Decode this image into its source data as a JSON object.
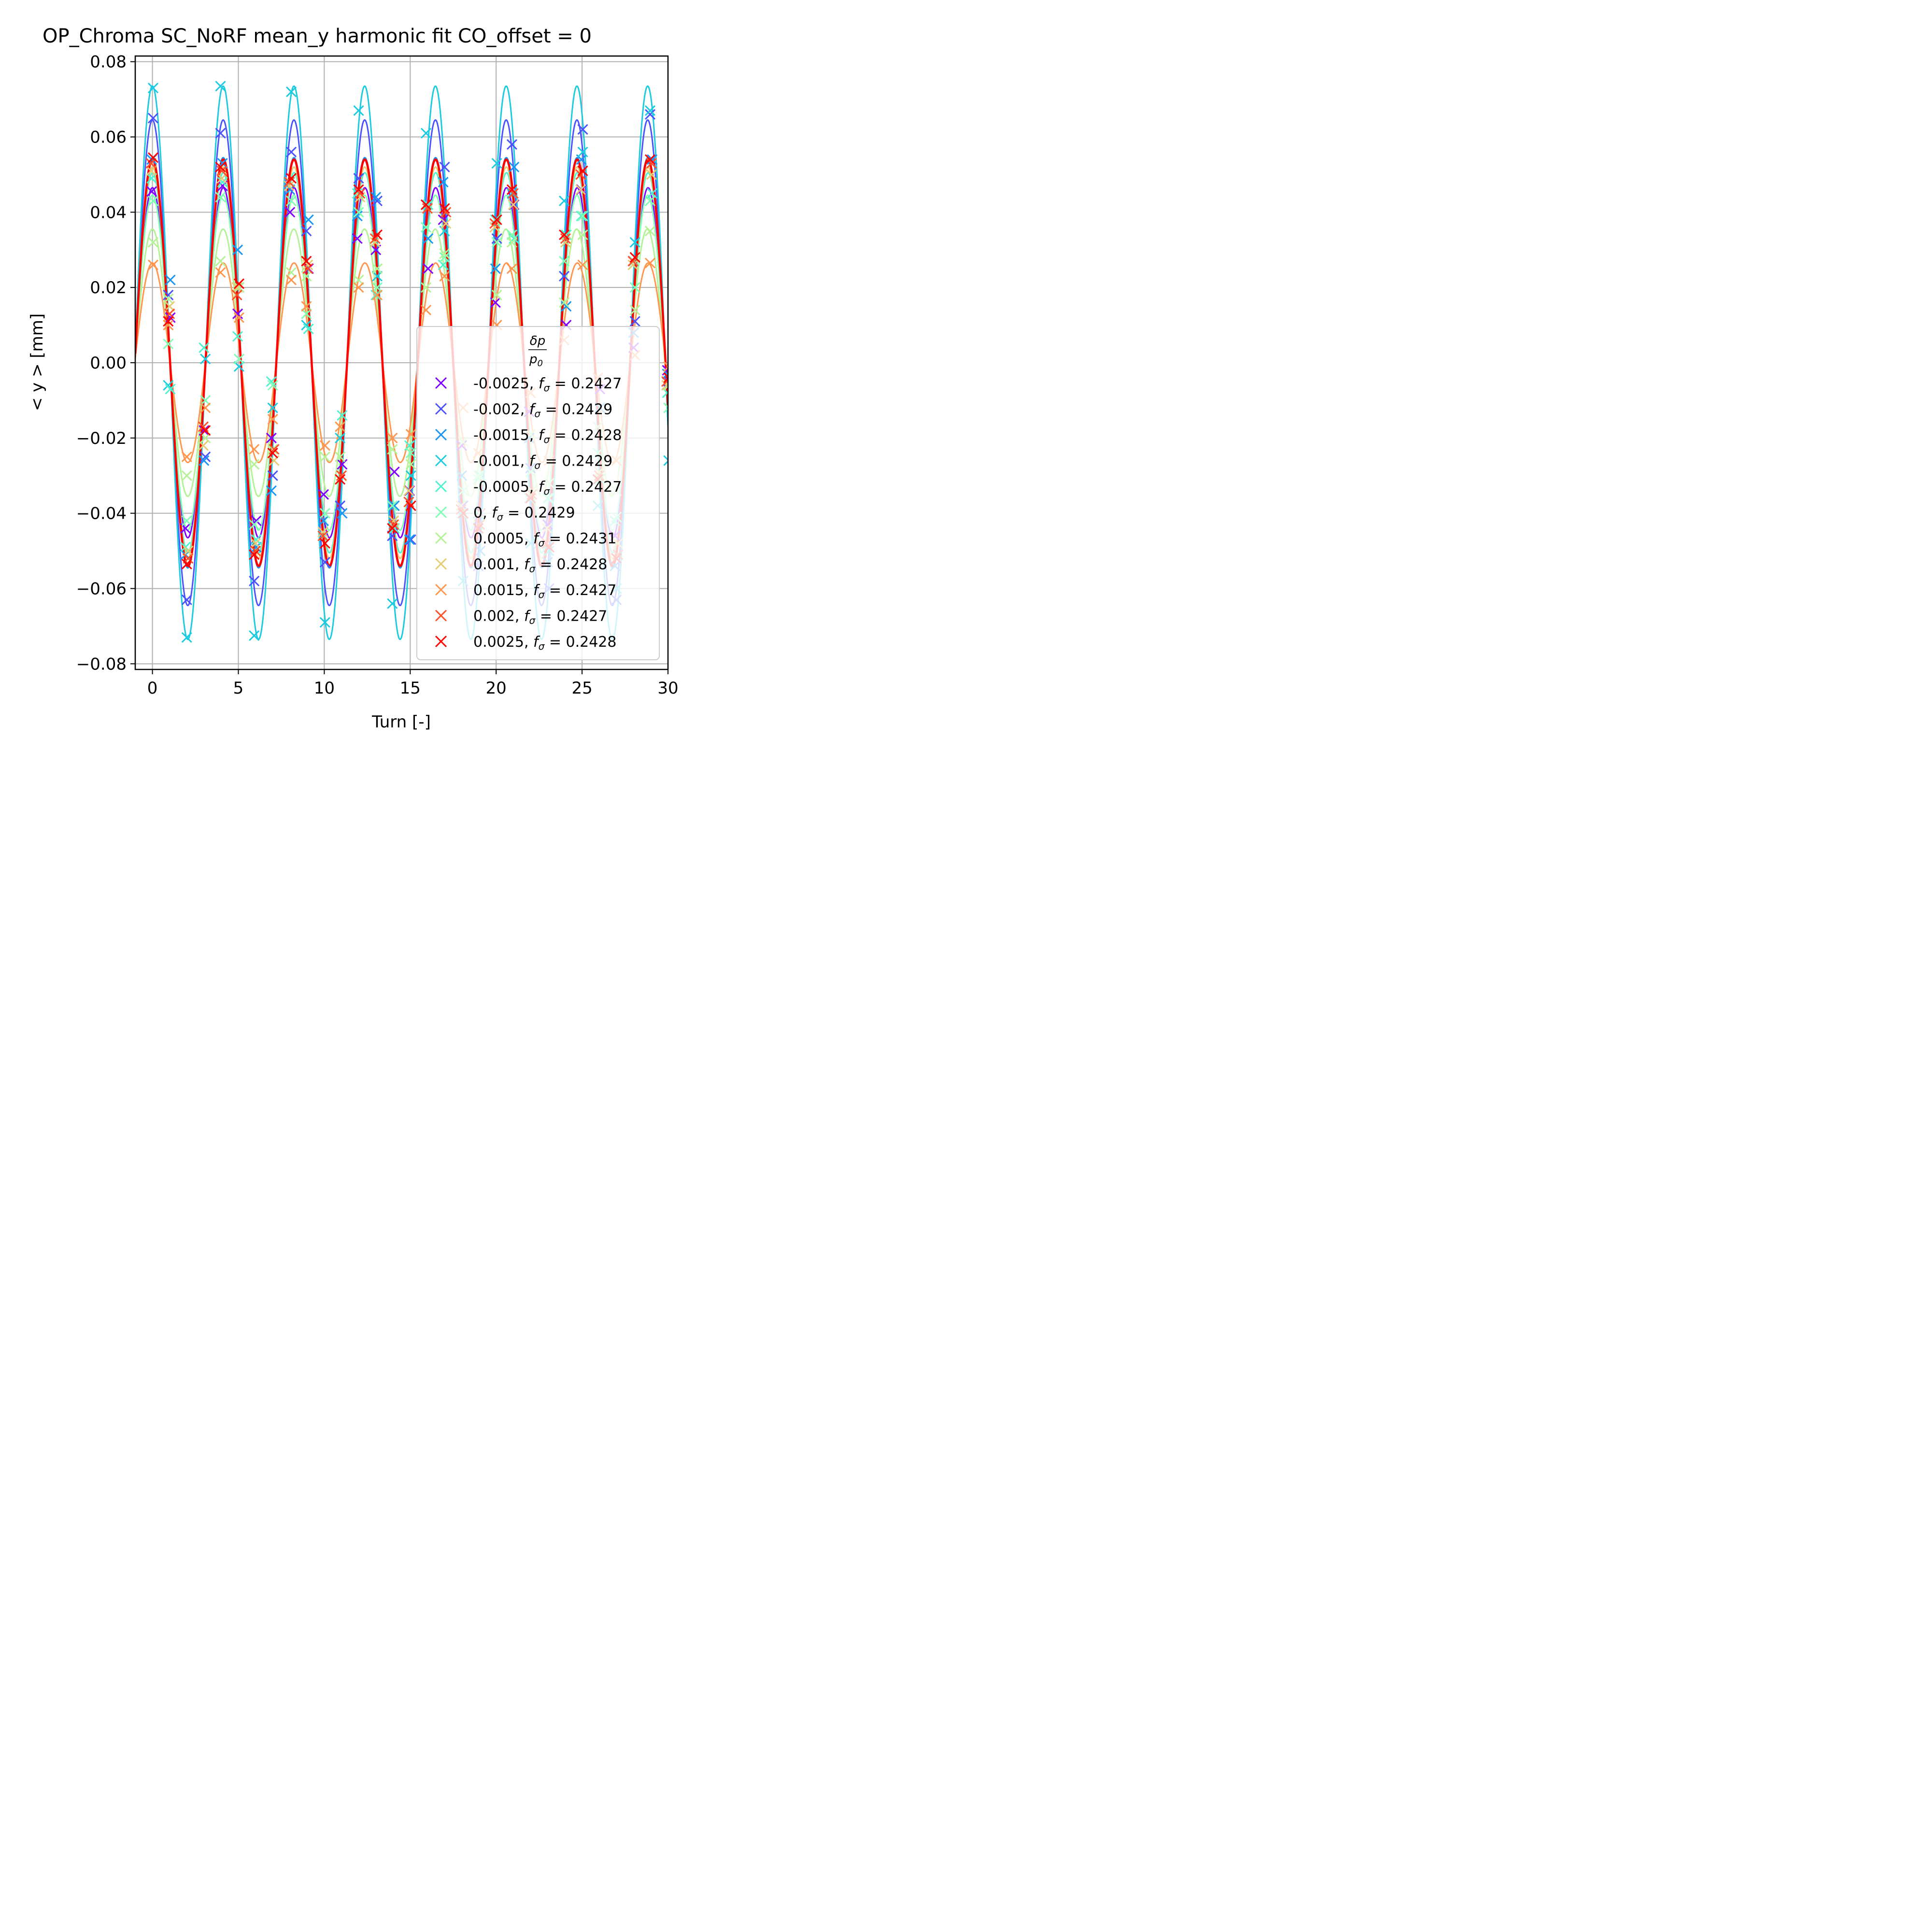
{
  "chart_data": {
    "type": "line",
    "title": "OP_Chroma SC_NoRF mean_y harmonic fit CO_offset = 0",
    "xlabel": "Turn [-]",
    "ylabel": "< y >  [mm]",
    "xlim": [
      -1,
      30
    ],
    "ylim": [
      -0.0815,
      0.0815
    ],
    "xticks": [
      0,
      5,
      10,
      15,
      20,
      25,
      30
    ],
    "xtick_labels": [
      "0",
      "5",
      "10",
      "15",
      "20",
      "25",
      "30"
    ],
    "yticks": [
      0.08,
      0.06,
      0.04,
      0.02,
      0.0,
      -0.02,
      -0.04,
      -0.06,
      -0.08
    ],
    "ytick_labels": [
      "0.08",
      "0.06",
      "0.04",
      "0.02",
      "0.00",
      "−0.02",
      "−0.04",
      "−0.06",
      "−0.08"
    ],
    "grid": true,
    "legend_position": "lower-right",
    "legend_title": "δp / p0",
    "legend_title_parts": {
      "num": "δp",
      "den": "p",
      "den_sub": "0"
    },
    "series": [
      {
        "name": "-0.0025, fσ = 0.2427",
        "dp": "-0.0025",
        "f_label": "= 0.2427",
        "color": "#8000ff",
        "freq": 0.2427,
        "amplitude": 0.0465,
        "phase": 0.0,
        "points_y": [
          0.0455,
          0.012,
          -0.044,
          -0.018,
          0.047,
          0.013,
          -0.042,
          -0.02,
          0.04,
          0.025,
          -0.035,
          -0.027,
          0.033,
          0.03,
          -0.029,
          -0.034,
          0.025,
          0.038,
          -0.022,
          -0.04,
          0.016,
          0.042,
          -0.013,
          -0.043,
          0.01,
          0.046,
          -0.007,
          -0.046,
          0.004,
          0.045,
          -0.002
        ]
      },
      {
        "name": "-0.002, fσ = 0.2429",
        "dp": "-0.002",
        "f_label": "= 0.2429",
        "color": "#4a53fb",
        "freq": 0.2429,
        "amplitude": 0.0645,
        "phase": 0.0,
        "points_y": [
          0.065,
          0.018,
          -0.063,
          -0.025,
          0.061,
          0.02,
          -0.058,
          -0.03,
          0.056,
          0.035,
          -0.053,
          -0.038,
          0.049,
          0.043,
          -0.046,
          -0.047,
          0.042,
          0.052,
          -0.038,
          -0.054,
          0.033,
          0.058,
          -0.028,
          -0.06,
          0.023,
          0.062,
          -0.017,
          -0.063,
          0.011,
          0.066,
          -0.005
        ]
      },
      {
        "name": "-0.0015, fσ = 0.2428",
        "dp": "-0.0015",
        "f_label": "= 0.2428",
        "color": "#1996f3",
        "freq": 0.2428,
        "amplitude": 0.0545,
        "phase": 0.0,
        "points_y": [
          0.054,
          0.022,
          -0.051,
          -0.026,
          0.053,
          0.03,
          -0.049,
          -0.034,
          0.046,
          0.038,
          -0.042,
          -0.04,
          0.039,
          0.044,
          -0.038,
          -0.047,
          0.033,
          0.048,
          -0.03,
          -0.05,
          0.025,
          0.052,
          -0.02,
          -0.053,
          0.015,
          0.054,
          -0.012,
          -0.054,
          0.008,
          0.054,
          -0.003
        ]
      },
      {
        "name": "-0.001, fσ = 0.2429",
        "dp": "-0.001",
        "f_label": "= 0.2429",
        "color": "#1ccbe0",
        "freq": 0.2429,
        "amplitude": 0.0735,
        "phase": 0.0,
        "points_y": [
          0.073,
          -0.006,
          -0.073,
          0.001,
          0.0735,
          -0.001,
          -0.0725,
          -0.012,
          0.072,
          0.01,
          -0.069,
          -0.02,
          0.067,
          0.023,
          -0.064,
          -0.03,
          0.061,
          0.035,
          -0.058,
          -0.04,
          0.053,
          0.045,
          -0.048,
          -0.05,
          0.043,
          0.056,
          -0.038,
          -0.06,
          0.032,
          0.067,
          -0.026
        ]
      },
      {
        "name": "-0.0005, fσ = 0.2427",
        "dp": "-0.0005",
        "f_label": "= 0.2427",
        "color": "#4df3ce",
        "freq": 0.2427,
        "amplitude": 0.0505,
        "phase": 0.0,
        "points_y": [
          0.049,
          -0.007,
          -0.049,
          0.004,
          0.048,
          0.007,
          -0.047,
          -0.005,
          0.048,
          0.009,
          -0.046,
          -0.014,
          0.045,
          0.018,
          -0.044,
          -0.022,
          0.042,
          0.026,
          -0.04,
          -0.03,
          0.038,
          0.033,
          -0.036,
          -0.036,
          0.034,
          0.039,
          -0.031,
          -0.042,
          0.027,
          0.045,
          -0.008
        ]
      },
      {
        "name": "0, fσ = 0.2429",
        "dp": "0",
        "f_label": "= 0.2429",
        "color": "#80ffb4",
        "freq": 0.2429,
        "amplitude": 0.0445,
        "phase": 0.0,
        "points_y": [
          0.043,
          0.005,
          -0.042,
          -0.01,
          0.044,
          0.001,
          -0.043,
          -0.006,
          0.043,
          0.013,
          -0.04,
          -0.017,
          0.04,
          0.02,
          -0.038,
          -0.024,
          0.036,
          0.028,
          -0.034,
          -0.031,
          0.032,
          0.034,
          -0.029,
          -0.036,
          0.027,
          0.039,
          -0.024,
          -0.041,
          0.02,
          0.043,
          -0.012
        ]
      },
      {
        "name": "0.0005, fσ = 0.2431",
        "dp": "0.0005",
        "f_label": "= 0.2431",
        "color": "#b3f396",
        "freq": 0.2431,
        "amplitude": 0.0355,
        "phase": 0.0,
        "points_y": [
          0.032,
          0.017,
          -0.03,
          -0.02,
          0.027,
          0.02,
          -0.027,
          -0.023,
          0.024,
          0.023,
          -0.025,
          -0.025,
          0.022,
          0.025,
          -0.023,
          -0.027,
          0.02,
          0.029,
          -0.021,
          -0.03,
          0.018,
          0.032,
          -0.019,
          -0.032,
          0.016,
          0.034,
          -0.017,
          -0.034,
          0.014,
          0.035,
          -0.006
        ]
      },
      {
        "name": "0.001, fσ = 0.2428",
        "dp": "0.001",
        "f_label": "= 0.2428",
        "color": "#e6cb72",
        "freq": 0.2428,
        "amplitude": 0.052,
        "phase": 0.0,
        "points_y": [
          0.051,
          0.015,
          -0.05,
          -0.022,
          0.049,
          0.02,
          -0.048,
          -0.026,
          0.047,
          0.026,
          -0.045,
          -0.03,
          0.044,
          0.032,
          -0.042,
          -0.034,
          0.041,
          0.037,
          -0.038,
          -0.04,
          0.036,
          0.042,
          -0.034,
          -0.044,
          0.032,
          0.046,
          -0.029,
          -0.048,
          0.026,
          0.05,
          -0.006
        ]
      },
      {
        "name": "0.0015, fσ = 0.2427",
        "dp": "0.0015",
        "f_label": "= 0.2427",
        "color": "#ff964e",
        "freq": 0.2427,
        "amplitude": 0.0265,
        "phase": 0.0,
        "points_y": [
          0.026,
          0.01,
          -0.025,
          -0.012,
          0.024,
          0.012,
          -0.023,
          -0.015,
          0.022,
          0.015,
          -0.022,
          -0.017,
          0.02,
          0.018,
          -0.02,
          -0.019,
          0.014,
          0.023,
          -0.012,
          -0.024,
          0.01,
          0.025,
          -0.008,
          -0.026,
          0.006,
          0.026,
          -0.004,
          -0.026,
          0.002,
          0.0265,
          -0.001
        ]
      },
      {
        "name": "0.002, fσ = 0.2427",
        "dp": "0.002",
        "f_label": "= 0.2427",
        "color": "#ff5029",
        "freq": 0.2427,
        "amplitude": 0.054,
        "phase": 0.0,
        "points_y": [
          0.053,
          0.013,
          -0.052,
          -0.017,
          0.051,
          0.018,
          -0.05,
          -0.023,
          0.048,
          0.025,
          -0.046,
          -0.03,
          0.045,
          0.033,
          -0.043,
          -0.037,
          0.041,
          0.04,
          -0.039,
          -0.043,
          0.037,
          0.045,
          -0.035,
          -0.048,
          0.033,
          0.05,
          -0.03,
          -0.051,
          0.027,
          0.053,
          -0.005
        ]
      },
      {
        "name": "0.0025, fσ = 0.2428",
        "dp": "0.0025",
        "f_label": "= 0.2428",
        "color": "#ff0000",
        "freq": 0.2428,
        "amplitude": 0.054,
        "phase": 0.0,
        "points_y": [
          0.0545,
          0.011,
          -0.0535,
          -0.018,
          0.052,
          0.021,
          -0.051,
          -0.024,
          0.049,
          0.027,
          -0.048,
          -0.031,
          0.046,
          0.034,
          -0.044,
          -0.038,
          0.042,
          0.041,
          -0.04,
          -0.044,
          0.038,
          0.046,
          -0.036,
          -0.049,
          0.034,
          0.051,
          -0.031,
          -0.052,
          0.028,
          0.054,
          -0.004
        ]
      }
    ]
  }
}
